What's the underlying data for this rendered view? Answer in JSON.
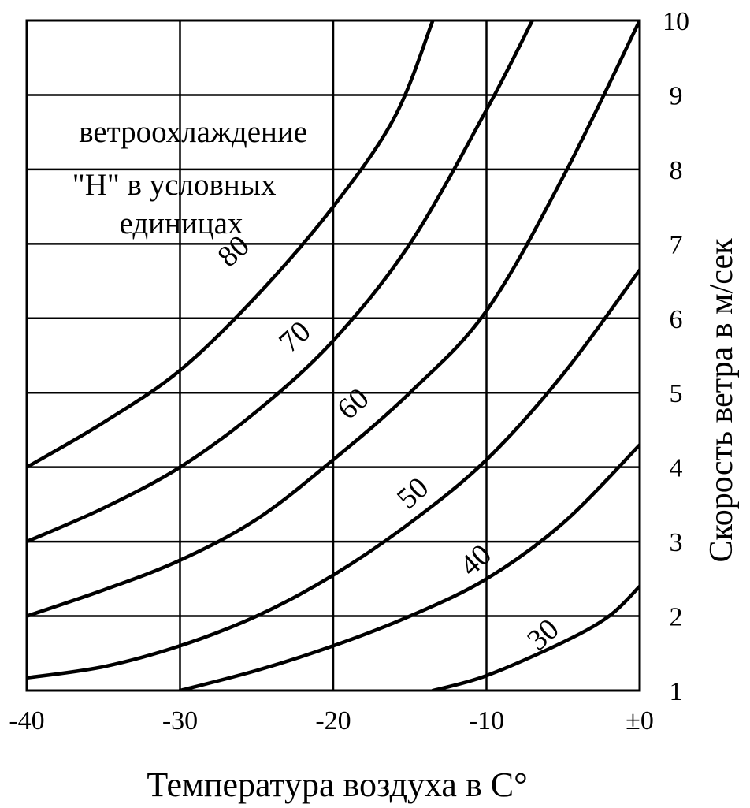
{
  "chart_data": {
    "type": "line",
    "title": "",
    "annotation": [
      "ветроохлаждение",
      "\"H\" в условных",
      "единицах"
    ],
    "xlabel": "Температура воздуха в  С°",
    "ylabel": "Скорость  ветра  в  м/сек",
    "xlim": [
      -40,
      0
    ],
    "ylim": [
      1,
      10
    ],
    "x_ticks": [
      -40,
      -30,
      -20,
      -10,
      0
    ],
    "x_tick_labels": [
      "-40",
      "-30",
      "-20",
      "-10",
      "±0"
    ],
    "y_ticks": [
      1,
      2,
      3,
      4,
      5,
      6,
      7,
      8,
      9,
      10
    ],
    "y_tick_labels": [
      "1",
      "2",
      "3",
      "4",
      "5",
      "6",
      "7",
      "8",
      "9",
      "10"
    ],
    "grid": true,
    "series": [
      {
        "name": "80",
        "points": [
          [
            -40,
            4.0
          ],
          [
            -35,
            4.6
          ],
          [
            -30,
            5.3
          ],
          [
            -25,
            6.3
          ],
          [
            -20,
            7.5
          ],
          [
            -16,
            8.7
          ],
          [
            -13.5,
            10.0
          ]
        ]
      },
      {
        "name": "70",
        "points": [
          [
            -40,
            3.0
          ],
          [
            -35,
            3.45
          ],
          [
            -30,
            4.0
          ],
          [
            -25,
            4.75
          ],
          [
            -20,
            5.7
          ],
          [
            -15,
            7.0
          ],
          [
            -10,
            8.8
          ],
          [
            -7,
            10.0
          ]
        ]
      },
      {
        "name": "60",
        "points": [
          [
            -40,
            2.0
          ],
          [
            -35,
            2.35
          ],
          [
            -30,
            2.75
          ],
          [
            -25,
            3.3
          ],
          [
            -20,
            4.1
          ],
          [
            -15,
            5.0
          ],
          [
            -10,
            6.1
          ],
          [
            -5,
            7.9
          ],
          [
            0,
            10.0
          ]
        ]
      },
      {
        "name": "50",
        "points": [
          [
            -40,
            1.17
          ],
          [
            -35,
            1.32
          ],
          [
            -30,
            1.6
          ],
          [
            -25,
            2.0
          ],
          [
            -20,
            2.55
          ],
          [
            -15,
            3.25
          ],
          [
            -10,
            4.1
          ],
          [
            -5,
            5.25
          ],
          [
            0,
            6.65
          ]
        ]
      },
      {
        "name": "40",
        "points": [
          [
            -30,
            1.0
          ],
          [
            -25,
            1.27
          ],
          [
            -20,
            1.6
          ],
          [
            -15,
            2.0
          ],
          [
            -10,
            2.5
          ],
          [
            -5,
            3.25
          ],
          [
            0,
            4.3
          ]
        ]
      },
      {
        "name": "30",
        "points": [
          [
            -13.5,
            1.0
          ],
          [
            -10,
            1.2
          ],
          [
            -5,
            1.65
          ],
          [
            -2,
            2.0
          ],
          [
            0,
            2.4
          ]
        ]
      }
    ],
    "curve_labels": [
      {
        "text": "80",
        "at": [
          -26.5,
          6.9
        ]
      },
      {
        "text": "70",
        "at": [
          -22.5,
          5.75
        ]
      },
      {
        "text": "60",
        "at": [
          -18.7,
          4.85
        ]
      },
      {
        "text": "50",
        "at": [
          -14.8,
          3.65
        ]
      },
      {
        "text": "40",
        "at": [
          -10.7,
          2.75
        ]
      },
      {
        "text": "30",
        "at": [
          -6.3,
          1.75
        ]
      }
    ]
  },
  "colors": {
    "ink": "#000000",
    "paper": "#ffffff"
  }
}
